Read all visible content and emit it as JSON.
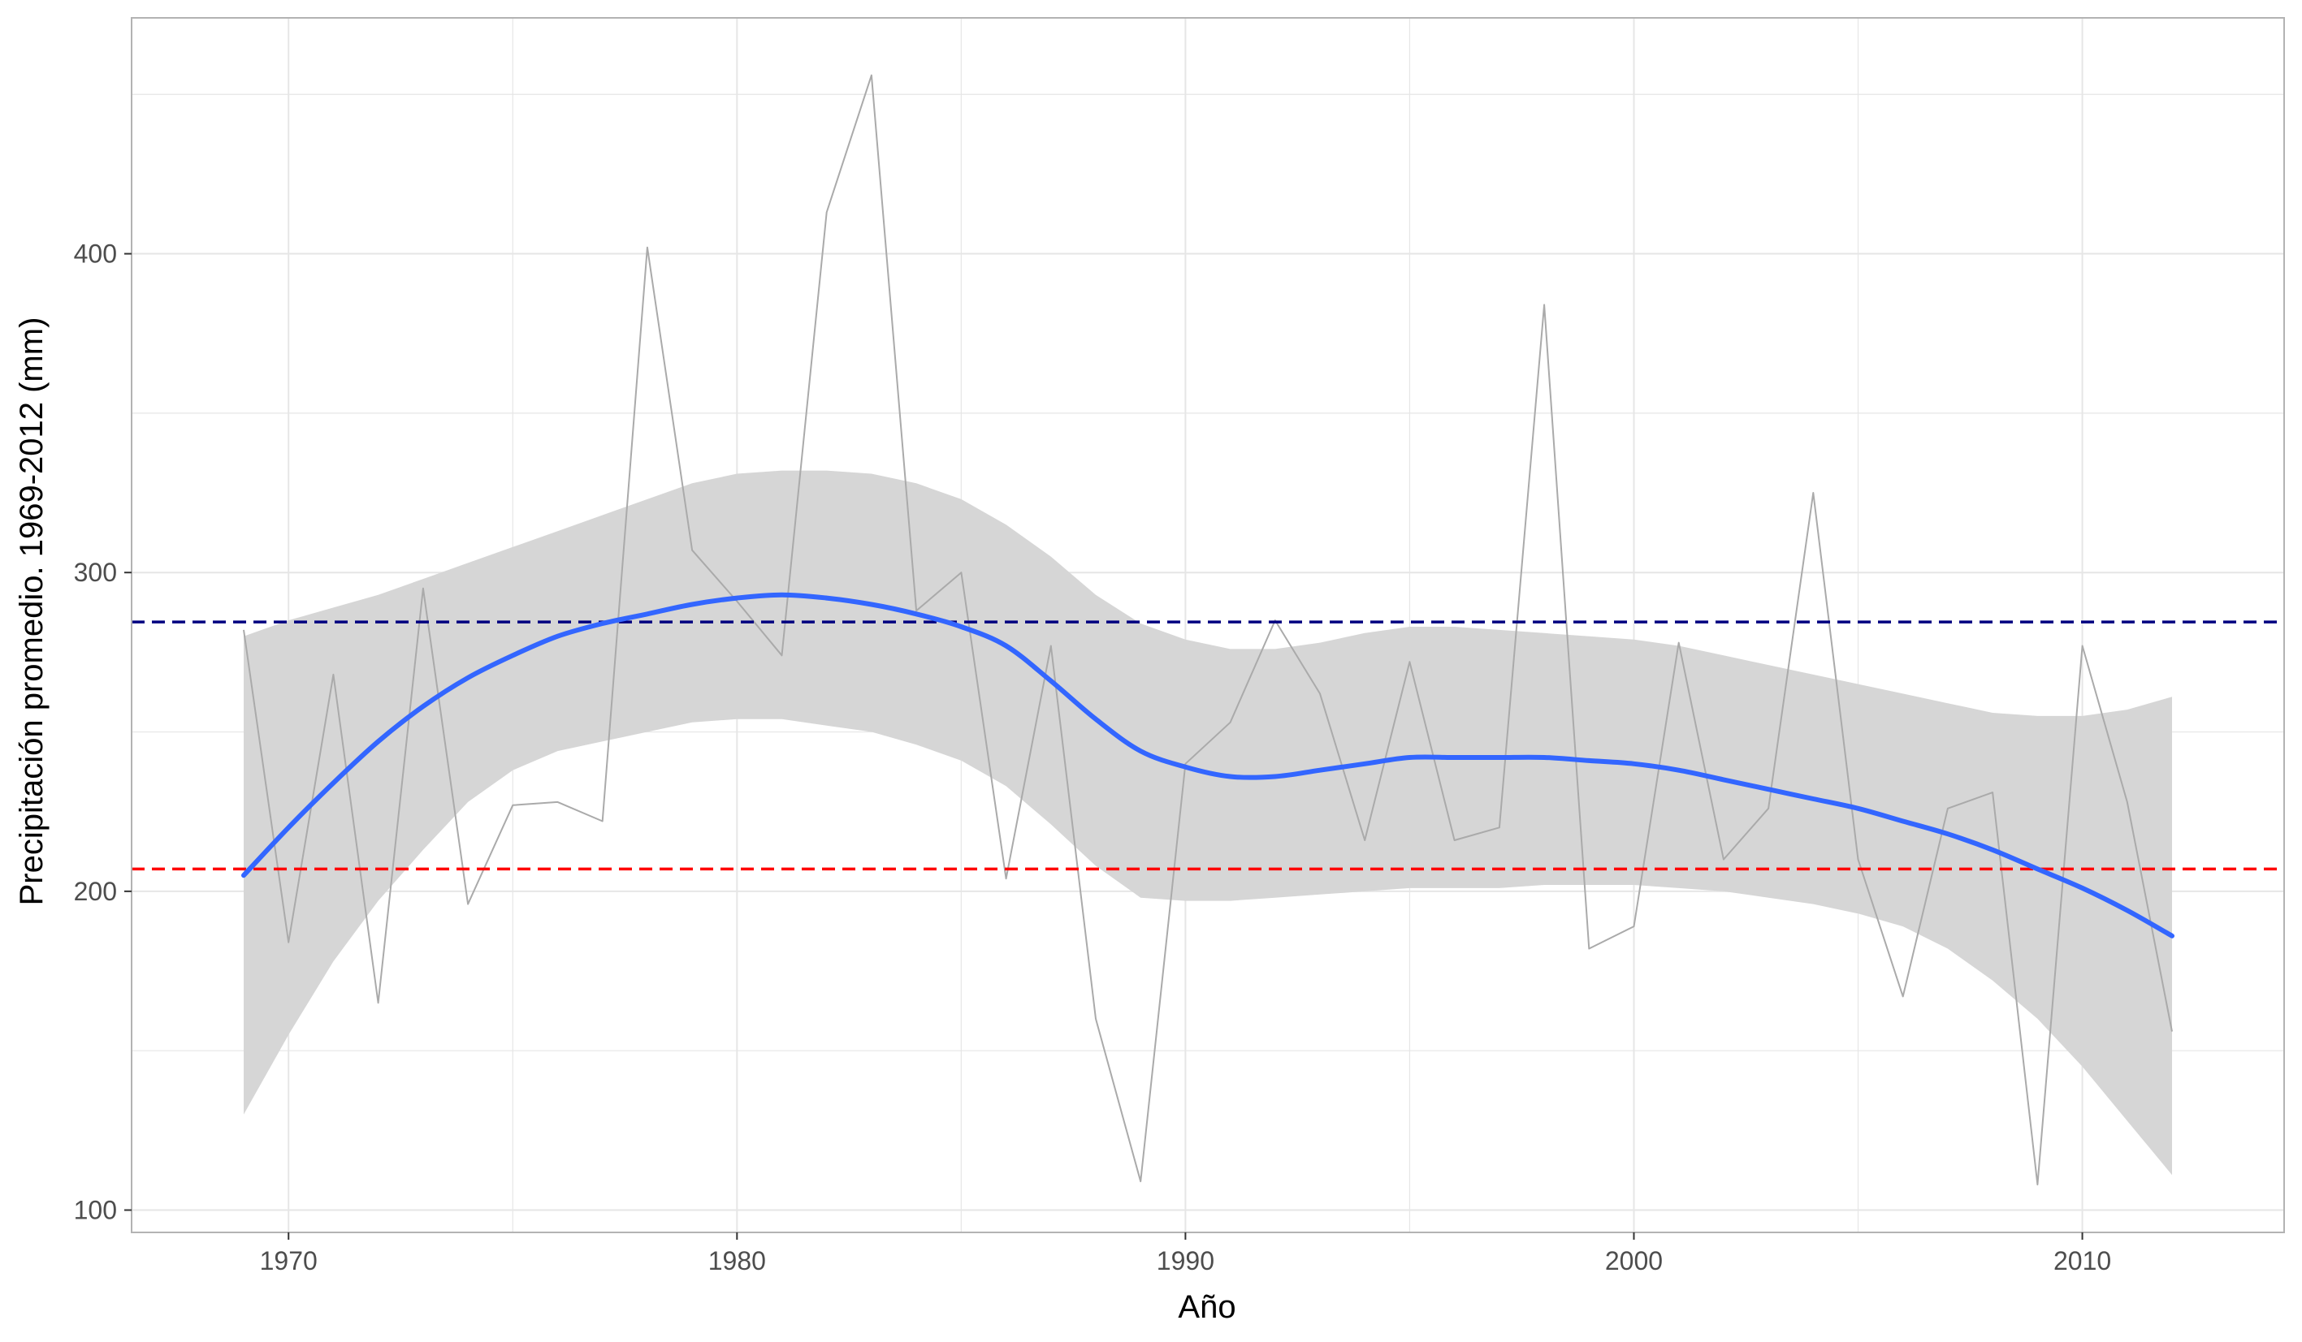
{
  "chart_data": {
    "type": "line",
    "xlabel": "Año",
    "ylabel": "Precipitación  promedio. 1969-2012 (mm)",
    "xlim": [
      1966.5,
      2014.5
    ],
    "ylim": [
      93,
      474
    ],
    "x_ticks": [
      1970,
      1980,
      1990,
      2000,
      2010
    ],
    "x_tick_labels": [
      "1970",
      "1980",
      "1990",
      "2000",
      "2010"
    ],
    "y_ticks": [
      100,
      200,
      300,
      400
    ],
    "y_tick_labels": [
      "100",
      "200",
      "300",
      "400"
    ],
    "grid": true,
    "legend": "none",
    "series": [
      {
        "x": [
          1969,
          1970,
          1971,
          1972,
          1973,
          1974,
          1975,
          1976,
          1977,
          1978,
          1979,
          1980,
          1981,
          1982,
          1983,
          1984,
          1985,
          1986,
          1987,
          1988,
          1989,
          1990,
          1991,
          1992,
          1993,
          1994,
          1995,
          1996,
          1997,
          1998,
          1999,
          2000,
          2001,
          2002,
          2003,
          2004,
          2005,
          2006,
          2007,
          2008,
          2009,
          2010,
          2011,
          2012
        ],
        "values": [
          282,
          184,
          268,
          165,
          295,
          196,
          227,
          228,
          222,
          402,
          307,
          291,
          274,
          413,
          456,
          288,
          300,
          204,
          277,
          160,
          109,
          240,
          253,
          285,
          262,
          216,
          272,
          216,
          220,
          384,
          182,
          189,
          278,
          210,
          226,
          325,
          210,
          167,
          226,
          231,
          108,
          277,
          228,
          156
        ]
      },
      {
        "x": [
          1969,
          1970,
          1971,
          1972,
          1973,
          1974,
          1975,
          1976,
          1977,
          1978,
          1979,
          1980,
          1981,
          1982,
          1983,
          1984,
          1985,
          1986,
          1987,
          1988,
          1989,
          1990,
          1991,
          1992,
          1993,
          1994,
          1995,
          1996,
          1997,
          1998,
          1999,
          2000,
          2001,
          2002,
          2003,
          2004,
          2005,
          2006,
          2007,
          2008,
          2009,
          2010,
          2011,
          2012
        ],
        "values": [
          205,
          220,
          234,
          247,
          258,
          267,
          274,
          280,
          284,
          287,
          290,
          292,
          293,
          292,
          290,
          287,
          283,
          277,
          266,
          254,
          244,
          239,
          236,
          236,
          238,
          240,
          242,
          242,
          242,
          242,
          241,
          240,
          238,
          235,
          232,
          229,
          226,
          222,
          218,
          213,
          207,
          201,
          194,
          186
        ],
        "band_lower": [
          130,
          155,
          178,
          197,
          213,
          228,
          238,
          244,
          247,
          250,
          253,
          254,
          254,
          252,
          250,
          246,
          241,
          233,
          221,
          208,
          198,
          197,
          197,
          198,
          199,
          200,
          201,
          201,
          201,
          202,
          202,
          202,
          201,
          200,
          198,
          196,
          193,
          189,
          182,
          172,
          160,
          145,
          128,
          111
        ],
        "band_upper": [
          280,
          285,
          289,
          293,
          298,
          303,
          308,
          313,
          318,
          323,
          328,
          331,
          332,
          332,
          331,
          328,
          323,
          315,
          305,
          293,
          284,
          279,
          276,
          276,
          278,
          281,
          283,
          283,
          282,
          281,
          280,
          279,
          277,
          274,
          271,
          268,
          265,
          262,
          259,
          256,
          255,
          255,
          257,
          261
        ]
      }
    ],
    "reference_lines": [
      {
        "y": 284.5
      },
      {
        "y": 207
      }
    ],
    "colors": {
      "raw_line": "#aaaaaa",
      "smooth_line": "#3366ff",
      "band": "#d6d6d6",
      "ref_upper": "#000080",
      "ref_lower": "#ff0000",
      "grid": "#e6e6e6",
      "panel_border": "#b3b3b3"
    }
  }
}
